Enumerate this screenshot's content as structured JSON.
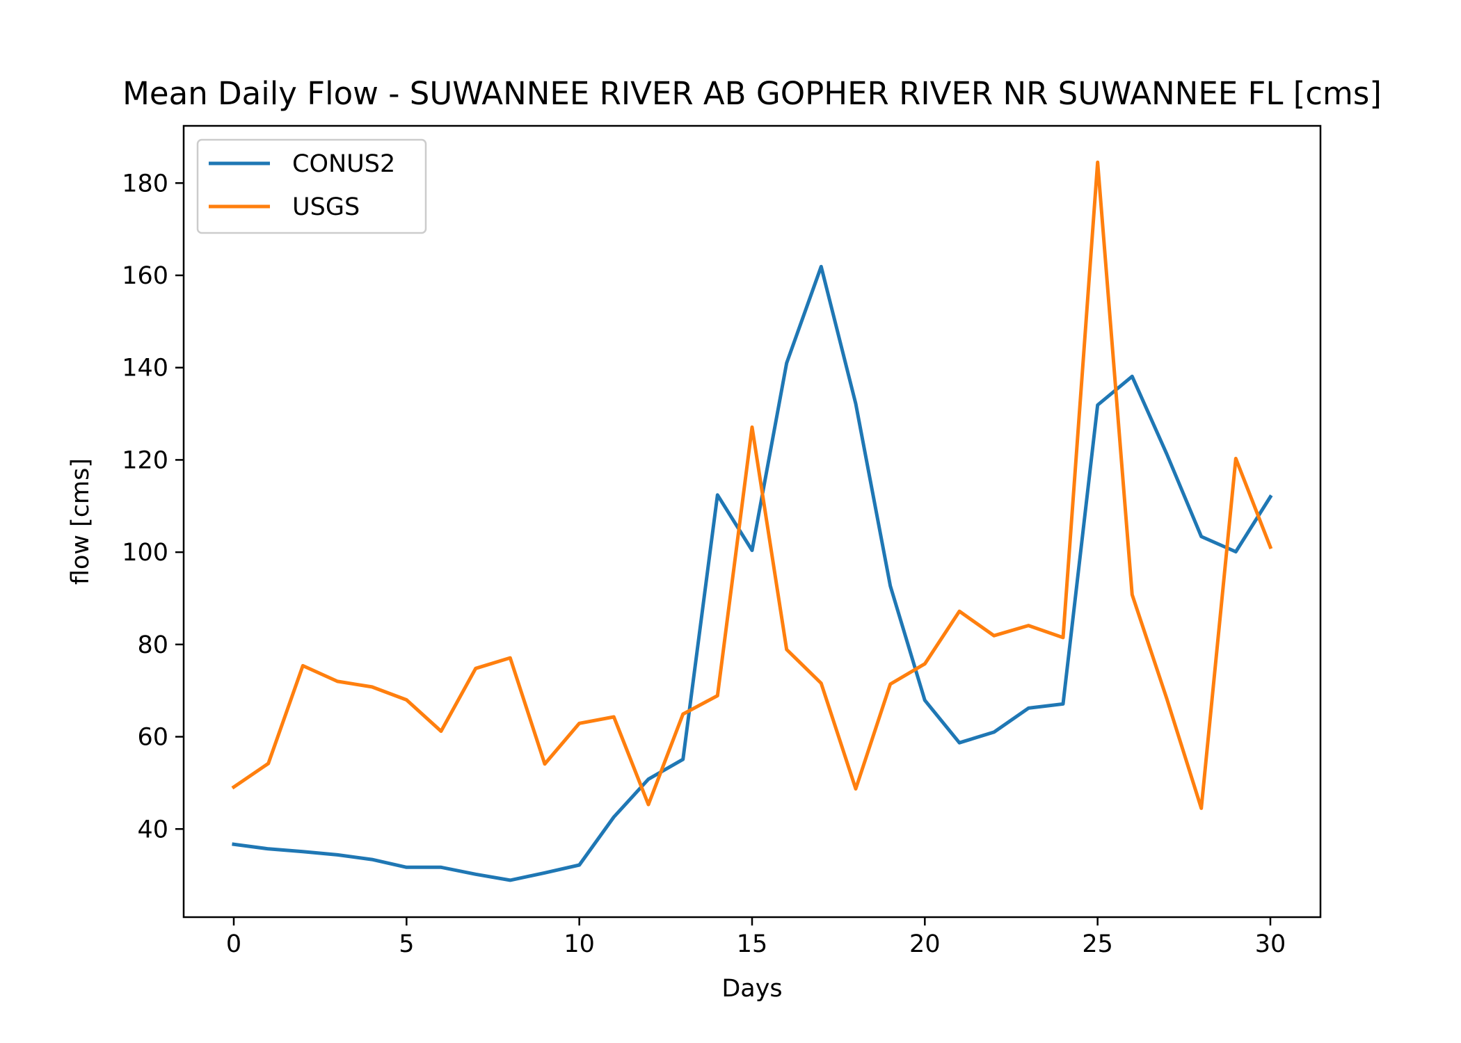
{
  "chart_data": {
    "type": "line",
    "title": "Mean Daily Flow - SUWANNEE RIVER AB GOPHER RIVER NR SUWANNEE FL [cms]",
    "xlabel": "Days",
    "ylabel": "flow [cms]",
    "xlim": [
      -1.45,
      31.45
    ],
    "ylim": [
      20.9,
      192.4
    ],
    "xticks": [
      0,
      5,
      10,
      15,
      20,
      25,
      30
    ],
    "yticks": [
      40,
      60,
      80,
      100,
      120,
      140,
      160,
      180
    ],
    "grid": false,
    "legend_position": "upper-left",
    "x": [
      0,
      1,
      2,
      3,
      4,
      5,
      6,
      7,
      8,
      9,
      10,
      11,
      12,
      13,
      14,
      15,
      16,
      17,
      18,
      19,
      20,
      21,
      22,
      23,
      24,
      25,
      26,
      27,
      28,
      29,
      30
    ],
    "series": [
      {
        "name": "CONUS2",
        "color": "#1f77b4",
        "values": [
          36.7,
          35.7,
          35.1,
          34.4,
          33.4,
          31.7,
          31.7,
          30.2,
          28.9,
          30.5,
          32.2,
          42.6,
          50.8,
          55.1,
          112.4,
          100.4,
          141,
          161.9,
          132.2,
          92.7,
          67.9,
          58.7,
          61,
          66.2,
          67.1,
          131.9,
          138.1,
          121.3,
          103.4,
          100.1,
          112
        ]
      },
      {
        "name": "USGS",
        "color": "#ff7f0e",
        "values": [
          49.1,
          54.2,
          75.4,
          72,
          70.8,
          68,
          61.2,
          74.8,
          77.1,
          54.1,
          62.9,
          64.3,
          45.3,
          64.9,
          68.9,
          127.1,
          78.9,
          71.6,
          48.7,
          71.4,
          75.8,
          87.2,
          81.9,
          84.1,
          81.5,
          184.5,
          90.8,
          68.3,
          44.5,
          120.3,
          101.1
        ]
      }
    ]
  }
}
